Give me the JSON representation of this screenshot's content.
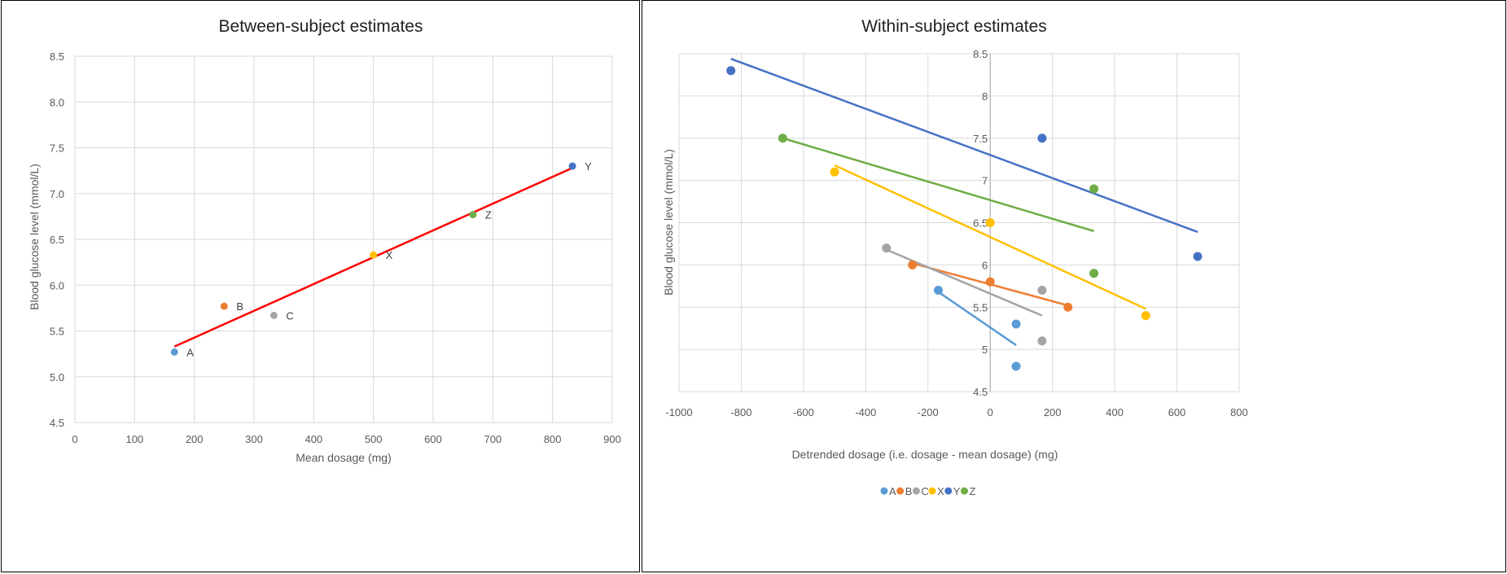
{
  "chart_data": [
    {
      "type": "scatter",
      "title": "Between-subject estimates",
      "xlabel": "Mean dosage (mg)",
      "ylabel": "Blood glucose level (mmol/L)",
      "xlim": [
        0,
        900
      ],
      "ylim": [
        4.5,
        8.5
      ],
      "x_ticks": [
        0,
        100,
        200,
        300,
        400,
        500,
        600,
        700,
        800,
        900
      ],
      "y_ticks": [
        "4.5",
        "5.0",
        "5.5",
        "6.0",
        "6.5",
        "7.0",
        "7.5",
        "8.0",
        "8.5"
      ],
      "grid": true,
      "points": [
        {
          "label": "A",
          "x": 166.7,
          "y": 5.27,
          "color": "#5b9bd5"
        },
        {
          "label": "B",
          "x": 250,
          "y": 5.77,
          "color": "#ed7d31"
        },
        {
          "label": "C",
          "x": 333.3,
          "y": 5.67,
          "color": "#a5a5a5"
        },
        {
          "label": "X",
          "x": 500,
          "y": 6.33,
          "color": "#ffc000"
        },
        {
          "label": "Y",
          "x": 833.3,
          "y": 7.3,
          "color": "#4472c4"
        },
        {
          "label": "Z",
          "x": 666.7,
          "y": 6.77,
          "color": "#70ad47"
        }
      ],
      "trendline": {
        "x": [
          166.7,
          833.3
        ],
        "y": [
          5.33,
          7.28
        ],
        "color": "#ff0000"
      }
    },
    {
      "type": "scatter",
      "title": "Within-subject estimates",
      "xlabel": "Detrended dosage (i.e. dosage - mean dosage) (mg)",
      "ylabel": "Blood glucose level (mmol/L)",
      "xlim": [
        -1000,
        800
      ],
      "ylim": [
        4.5,
        8.5
      ],
      "x_ticks": [
        -1000,
        -800,
        -600,
        -400,
        -200,
        0,
        200,
        400,
        600,
        800
      ],
      "y_ticks": [
        "4.5",
        "5",
        "5.5",
        "6",
        "6.5",
        "7",
        "7.5",
        "8",
        "8.5"
      ],
      "grid": true,
      "legend_position": "bottom",
      "series": [
        {
          "name": "A",
          "color": "#5b9bd5",
          "x": [
            -166.7,
            83.3,
            83.3
          ],
          "y": [
            5.7,
            5.3,
            4.8
          ],
          "trendline": {
            "x": [
              -166.7,
              83.3
            ],
            "y": [
              5.68,
              5.05
            ]
          }
        },
        {
          "name": "B",
          "color": "#ed7d31",
          "x": [
            -250,
            0,
            250
          ],
          "y": [
            6.0,
            5.8,
            5.5
          ],
          "trendline": {
            "x": [
              -250,
              250
            ],
            "y": [
              6.02,
              5.52
            ]
          }
        },
        {
          "name": "C",
          "color": "#a5a5a5",
          "x": [
            -333.3,
            166.7,
            166.7
          ],
          "y": [
            6.2,
            5.7,
            5.1
          ],
          "trendline": {
            "x": [
              -333.3,
              166.7
            ],
            "y": [
              6.18,
              5.4
            ]
          }
        },
        {
          "name": "X",
          "color": "#ffc000",
          "x": [
            -500,
            0,
            500
          ],
          "y": [
            7.1,
            6.5,
            5.4
          ],
          "trendline": {
            "x": [
              -500,
              500
            ],
            "y": [
              7.18,
              5.48
            ]
          }
        },
        {
          "name": "Y",
          "color": "#4472c4",
          "x": [
            -833.3,
            166.7,
            666.7
          ],
          "y": [
            8.3,
            7.5,
            6.1
          ],
          "trendline": {
            "x": [
              -833.3,
              666.7
            ],
            "y": [
              8.44,
              6.39
            ]
          }
        },
        {
          "name": "Z",
          "color": "#70ad47",
          "x": [
            -666.7,
            333.3,
            333.3
          ],
          "y": [
            7.5,
            6.9,
            5.9
          ],
          "trendline": {
            "x": [
              -666.7,
              333.3
            ],
            "y": [
              7.5,
              6.4
            ]
          }
        }
      ]
    }
  ]
}
